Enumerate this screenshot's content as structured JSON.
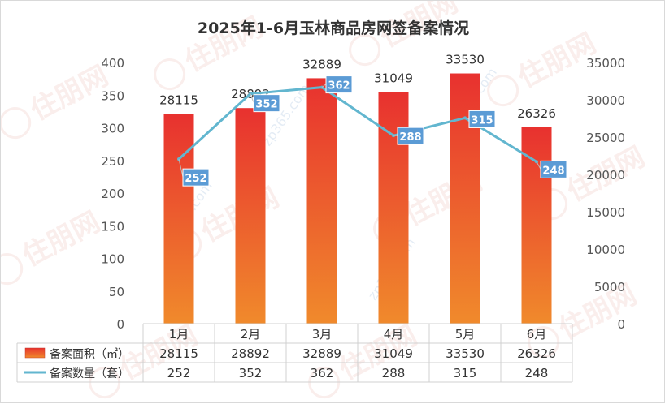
{
  "watermark": {
    "brand": "住朋网",
    "site": "zp365.com"
  },
  "chart_data": {
    "type": "bar",
    "title": "2025年1-6月玉林商品房网签备案情况",
    "categories": [
      "1月",
      "2月",
      "3月",
      "4月",
      "5月",
      "6月"
    ],
    "series": [
      {
        "name": "备案面积（㎡）",
        "type": "bar",
        "axis": "right",
        "values": [
          28115,
          28892,
          32889,
          31049,
          33530,
          26326
        ]
      },
      {
        "name": "备案数量（套）",
        "type": "line",
        "axis": "left",
        "values": [
          252,
          352,
          362,
          288,
          315,
          248
        ]
      }
    ],
    "left_axis": {
      "min": 0,
      "max": 400,
      "step": 50,
      "ticks": [
        "0",
        "50",
        "100",
        "150",
        "200",
        "250",
        "300",
        "350",
        "400"
      ]
    },
    "right_axis": {
      "min": 0,
      "max": 35000,
      "step": 5000,
      "ticks": [
        "0",
        "5000",
        "10000",
        "15000",
        "20000",
        "25000",
        "30000",
        "35000"
      ]
    },
    "legend": "data-table",
    "grid": false,
    "colors": {
      "bar_top": "#e8312f",
      "bar_bottom": "#f08a2c",
      "line": "#62b6cf",
      "label_box": "#5b9bd5"
    }
  }
}
